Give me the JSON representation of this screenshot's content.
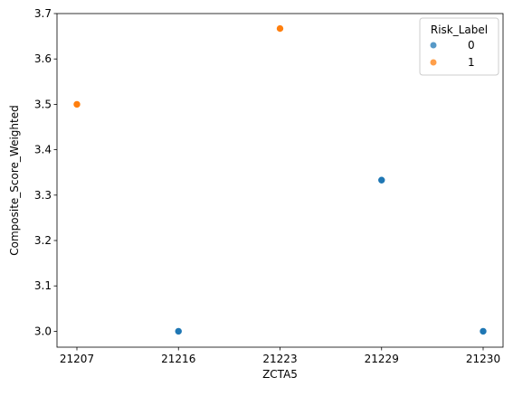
{
  "chart_data": {
    "type": "scatter",
    "xlabel": "ZCTA5",
    "ylabel": "Composite_Score_Weighted",
    "x_categories": [
      "21207",
      "21216",
      "21223",
      "21229",
      "21230"
    ],
    "ylim": [
      2.965,
      3.7
    ],
    "yticks": [
      3.0,
      3.1,
      3.2,
      3.3,
      3.4,
      3.5,
      3.6,
      3.7
    ],
    "grid": false,
    "legend": {
      "title": "Risk_Label",
      "placement": "top-right",
      "entries": [
        {
          "label": "0",
          "color": "#1f77b4"
        },
        {
          "label": "1",
          "color": "#ff7f0e"
        }
      ]
    },
    "points": [
      {
        "x": "21207",
        "y": 3.5,
        "risk_label": "1"
      },
      {
        "x": "21216",
        "y": 3.0,
        "risk_label": "0"
      },
      {
        "x": "21223",
        "y": 3.667,
        "risk_label": "1"
      },
      {
        "x": "21229",
        "y": 3.333,
        "risk_label": "0"
      },
      {
        "x": "21230",
        "y": 3.0,
        "risk_label": "0"
      }
    ]
  }
}
